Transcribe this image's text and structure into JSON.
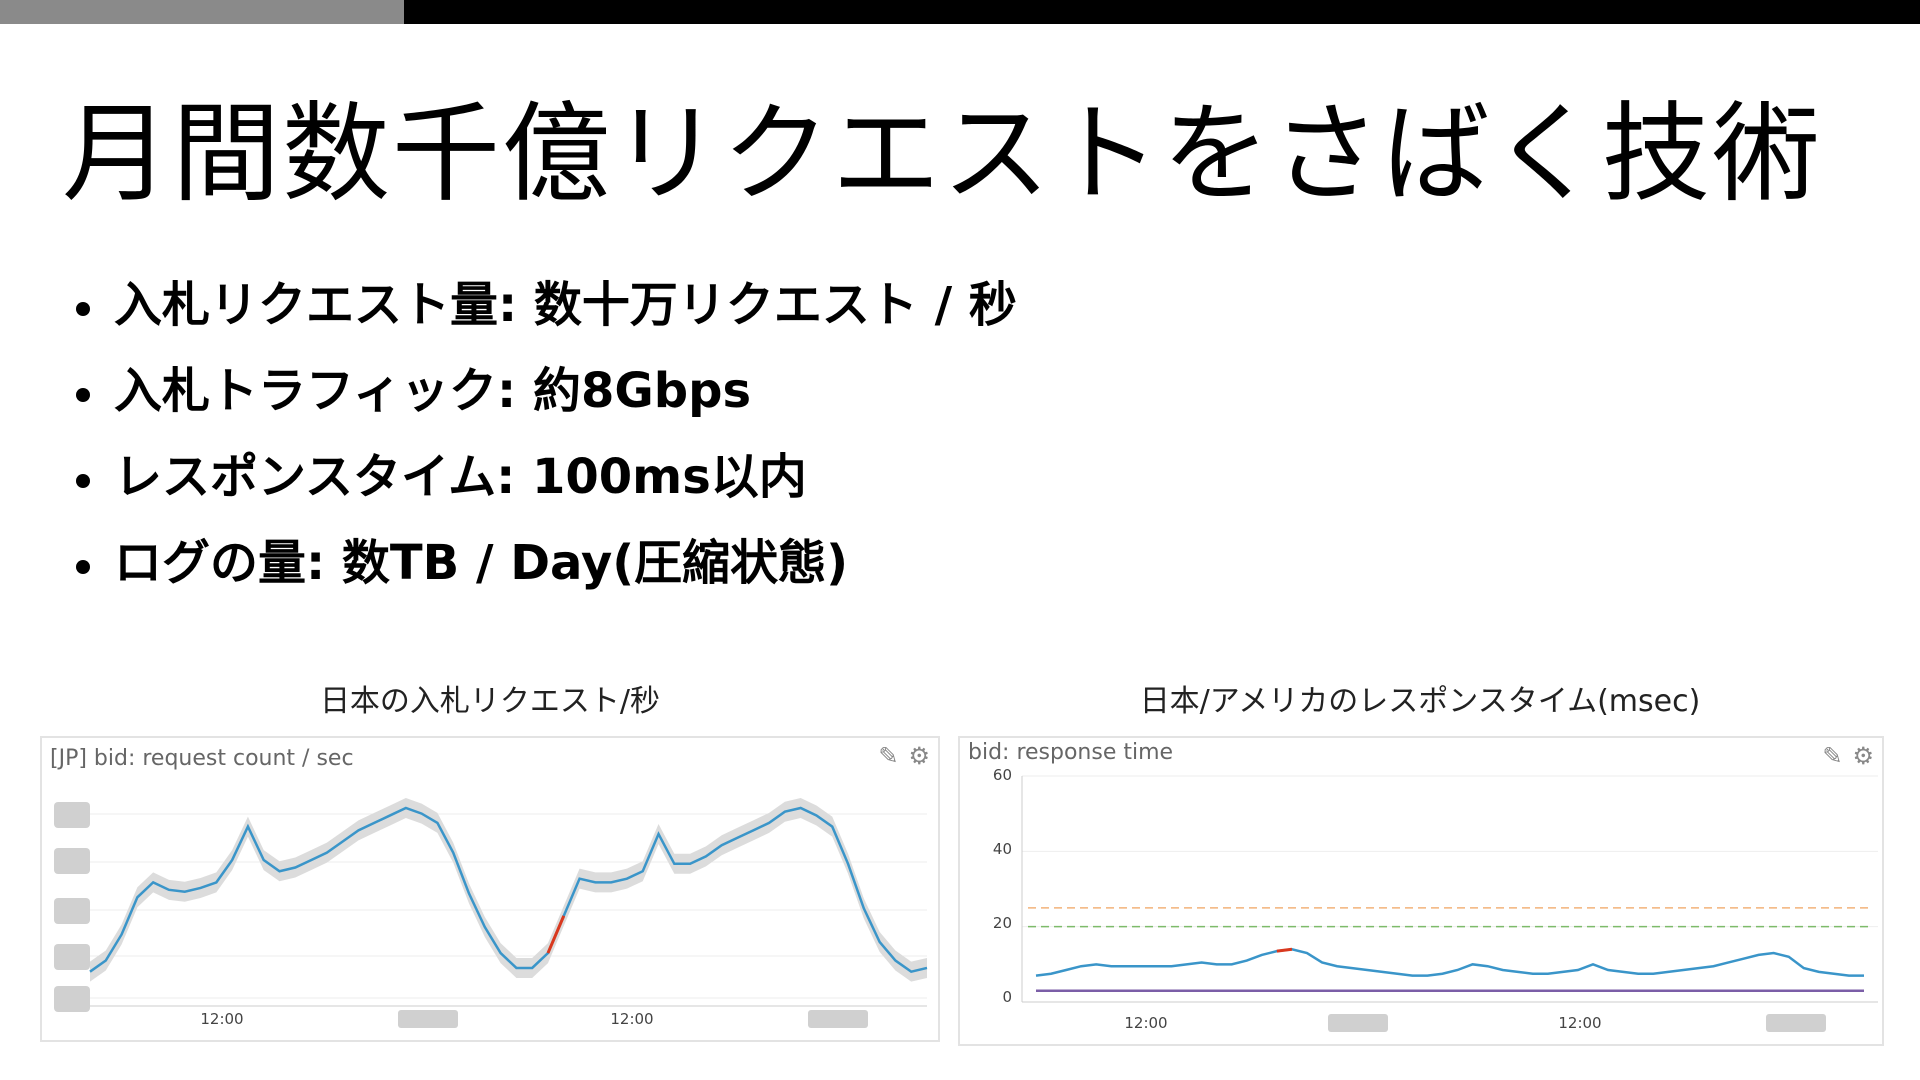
{
  "slide": {
    "title": "月間数千億リクエストをさばく技術",
    "bullets": [
      "入札リクエスト量: 数十万リクエスト / 秒",
      "入札トラフィック: 約8Gbps",
      "レスポンスタイム: 100ms以内",
      "ログの量: 数TB / Day(圧縮状態)"
    ]
  },
  "panels": {
    "left": {
      "caption": "日本の入札リクエスト/秒",
      "title": "[JP] bid: request count / sec",
      "edit_icon": "pencil-icon",
      "settings_icon": "gear-icon",
      "x_ticks": [
        "12:00",
        "12:00"
      ]
    },
    "right": {
      "caption": "日本/アメリカのレスポンスタイム(msec)",
      "title": "bid: response time",
      "edit_icon": "pencil-icon",
      "settings_icon": "gear-icon",
      "y_ticks": [
        "60",
        "40",
        "20",
        "0"
      ],
      "x_ticks": [
        "12:00",
        "12:00"
      ]
    }
  },
  "colors": {
    "line": "#3a95c9",
    "band": "#dcdcdc",
    "anomaly": "#d9381e",
    "threshold_warn": "#f2b27a",
    "threshold_ok": "#7dbb6a",
    "us_line": "#7b5ea7"
  },
  "chart_data": [
    {
      "type": "line",
      "title": "[JP] bid: request count / sec",
      "x_tick_labels": [
        "12:00",
        "12:00"
      ],
      "y_axis_labels_visible": false,
      "series": [
        {
          "values": [
            0.12,
            0.18,
            0.32,
            0.52,
            0.6,
            0.56,
            0.55,
            0.57,
            0.6,
            0.72,
            0.9,
            0.72,
            0.66,
            0.68,
            0.72,
            0.76,
            0.82,
            0.88,
            0.92,
            0.96,
            1.0,
            0.97,
            0.92,
            0.76,
            0.54,
            0.36,
            0.22,
            0.14,
            0.14,
            0.22,
            0.42,
            0.62,
            0.6,
            0.6,
            0.62,
            0.66,
            0.86,
            0.7,
            0.7,
            0.74,
            0.8,
            0.84,
            0.88,
            0.92,
            0.98,
            1.0,
            0.96,
            0.9,
            0.7,
            0.46,
            0.28,
            0.18,
            0.12,
            0.14
          ]
        }
      ]
    },
    {
      "type": "line",
      "title": "bid: response time",
      "x_tick_labels": [
        "12:00",
        "12:00"
      ],
      "ylim": [
        0,
        60
      ],
      "y_ticks": [
        0,
        20,
        40,
        60
      ],
      "thresholds": [
        25,
        20
      ],
      "series": [
        {
          "values": [
            7,
            7.5,
            8.5,
            9.5,
            10,
            9.5,
            9.5,
            9.5,
            9.5,
            9.5,
            10,
            10.5,
            10,
            10,
            11,
            12.5,
            13.5,
            14,
            13,
            10.5,
            9.5,
            9,
            8.5,
            8,
            7.5,
            7,
            7,
            7.5,
            8.5,
            10,
            9.5,
            8.5,
            8,
            7.5,
            7.5,
            8,
            8.5,
            10,
            8.5,
            8,
            7.5,
            7.5,
            8,
            8.5,
            9,
            9.5,
            10.5,
            11.5,
            12.5,
            13,
            12,
            9,
            8,
            7.5,
            7,
            7
          ]
        },
        {
          "values": [
            3,
            3,
            3,
            3,
            3,
            3,
            3,
            3,
            3,
            3,
            3,
            3,
            3,
            3,
            3,
            3,
            3,
            3,
            3,
            3,
            3,
            3,
            3,
            3,
            3,
            3,
            3,
            3,
            3,
            3,
            3,
            3,
            3,
            3,
            3,
            3,
            3,
            3,
            3,
            3,
            3,
            3,
            3,
            3,
            3,
            3,
            3,
            3,
            3,
            3,
            3,
            3,
            3,
            3,
            3,
            3
          ]
        }
      ]
    }
  ]
}
